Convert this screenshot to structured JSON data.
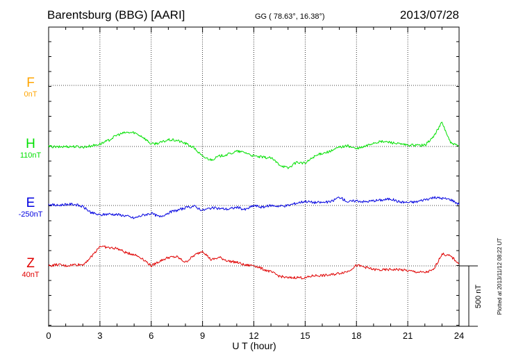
{
  "header": {
    "station": "Barentsburg (BBG)  [AARI]",
    "coords": "GG ( 78.63°,  16.38°)",
    "date": "2013/07/28"
  },
  "footer_note": "Plotted at 2013/11/12 08:22 UT",
  "scale_label": "500 nT",
  "chart_data": {
    "type": "line",
    "xlabel": "U T (hour)",
    "xlim": [
      0,
      24
    ],
    "x_ticks": [
      "0",
      "3",
      "6",
      "9",
      "12",
      "15",
      "18",
      "21",
      "24"
    ],
    "scale_bar_nT": 500,
    "series": [
      {
        "name": "F",
        "offset_label": "0nT",
        "color": "#ffa500",
        "has_data": false,
        "points": []
      },
      {
        "name": "H",
        "offset_label": "110nT",
        "color": "#00e000",
        "has_data": true,
        "points": [
          [
            0,
            0
          ],
          [
            0.5,
            -5
          ],
          [
            1,
            0
          ],
          [
            1.5,
            0
          ],
          [
            2,
            -5
          ],
          [
            2.5,
            5
          ],
          [
            3,
            20
          ],
          [
            3.5,
            50
          ],
          [
            4,
            95
          ],
          [
            4.5,
            115
          ],
          [
            5,
            115
          ],
          [
            5.5,
            80
          ],
          [
            6,
            20
          ],
          [
            6.5,
            30
          ],
          [
            7,
            55
          ],
          [
            7.5,
            50
          ],
          [
            8,
            25
          ],
          [
            8.5,
            -10
          ],
          [
            9,
            -85
          ],
          [
            9.5,
            -110
          ],
          [
            10,
            -80
          ],
          [
            10.5,
            -65
          ],
          [
            11,
            -40
          ],
          [
            11.5,
            -50
          ],
          [
            12,
            -80
          ],
          [
            12.5,
            -90
          ],
          [
            13,
            -95
          ],
          [
            13.5,
            -150
          ],
          [
            14,
            -180
          ],
          [
            14.5,
            -130
          ],
          [
            15,
            -140
          ],
          [
            15.5,
            -85
          ],
          [
            16,
            -55
          ],
          [
            16.5,
            -40
          ],
          [
            17,
            -5
          ],
          [
            17.5,
            5
          ],
          [
            18,
            -20
          ],
          [
            18.5,
            0
          ],
          [
            19,
            30
          ],
          [
            19.5,
            40
          ],
          [
            20,
            35
          ],
          [
            20.5,
            20
          ],
          [
            21,
            10
          ],
          [
            21.5,
            10
          ],
          [
            22,
            10
          ],
          [
            22.5,
            80
          ],
          [
            23,
            200
          ],
          [
            23.5,
            30
          ],
          [
            24,
            0
          ]
        ]
      },
      {
        "name": "E",
        "offset_label": "-250nT",
        "color": "#0000e0",
        "has_data": true,
        "points": [
          [
            0,
            10
          ],
          [
            0.5,
            0
          ],
          [
            1,
            10
          ],
          [
            1.5,
            10
          ],
          [
            2,
            -10
          ],
          [
            2.5,
            -60
          ],
          [
            3,
            -80
          ],
          [
            3.5,
            -70
          ],
          [
            4,
            -75
          ],
          [
            4.5,
            -85
          ],
          [
            5,
            -105
          ],
          [
            5.5,
            -80
          ],
          [
            6,
            -65
          ],
          [
            6.5,
            -95
          ],
          [
            7,
            -60
          ],
          [
            7.5,
            -40
          ],
          [
            8,
            -20
          ],
          [
            8.5,
            -5
          ],
          [
            9,
            -40
          ],
          [
            9.5,
            -20
          ],
          [
            10,
            -25
          ],
          [
            10.5,
            -30
          ],
          [
            11,
            -15
          ],
          [
            11.5,
            -35
          ],
          [
            12,
            0
          ],
          [
            12.5,
            -15
          ],
          [
            13,
            0
          ],
          [
            13.5,
            -5
          ],
          [
            14,
            0
          ],
          [
            14.5,
            20
          ],
          [
            15,
            35
          ],
          [
            15.5,
            25
          ],
          [
            16,
            25
          ],
          [
            16.5,
            30
          ],
          [
            17,
            70
          ],
          [
            17.5,
            30
          ],
          [
            18,
            40
          ],
          [
            18.5,
            30
          ],
          [
            19,
            40
          ],
          [
            19.5,
            45
          ],
          [
            20,
            55
          ],
          [
            20.5,
            30
          ],
          [
            21,
            25
          ],
          [
            21.5,
            30
          ],
          [
            22,
            50
          ],
          [
            22.5,
            65
          ],
          [
            23,
            60
          ],
          [
            23.5,
            50
          ],
          [
            24,
            10
          ]
        ]
      },
      {
        "name": "Z",
        "offset_label": "40nT",
        "color": "#e00000",
        "has_data": true,
        "points": [
          [
            0,
            0
          ],
          [
            0.5,
            10
          ],
          [
            1,
            0
          ],
          [
            1.5,
            10
          ],
          [
            2,
            10
          ],
          [
            2.5,
            75
          ],
          [
            3,
            165
          ],
          [
            3.5,
            150
          ],
          [
            4,
            145
          ],
          [
            4.5,
            110
          ],
          [
            5,
            95
          ],
          [
            5.5,
            60
          ],
          [
            6,
            0
          ],
          [
            6.5,
            40
          ],
          [
            7,
            70
          ],
          [
            7.5,
            75
          ],
          [
            8,
            30
          ],
          [
            8.5,
            85
          ],
          [
            9,
            125
          ],
          [
            9.5,
            50
          ],
          [
            10,
            70
          ],
          [
            10.5,
            40
          ],
          [
            11,
            30
          ],
          [
            11.5,
            5
          ],
          [
            12,
            5
          ],
          [
            12.5,
            -25
          ],
          [
            13,
            -50
          ],
          [
            13.5,
            -85
          ],
          [
            14,
            -100
          ],
          [
            14.5,
            -95
          ],
          [
            15,
            -100
          ],
          [
            15.5,
            -80
          ],
          [
            16,
            -80
          ],
          [
            16.5,
            -75
          ],
          [
            17,
            -60
          ],
          [
            17.5,
            -45
          ],
          [
            18,
            5
          ],
          [
            18.5,
            -10
          ],
          [
            19,
            -30
          ],
          [
            19.5,
            -35
          ],
          [
            20,
            -30
          ],
          [
            20.5,
            -30
          ],
          [
            21,
            -40
          ],
          [
            21.5,
            -50
          ],
          [
            22,
            -55
          ],
          [
            22.5,
            -35
          ],
          [
            23,
            100
          ],
          [
            23.5,
            80
          ],
          [
            24,
            20
          ]
        ]
      }
    ]
  }
}
